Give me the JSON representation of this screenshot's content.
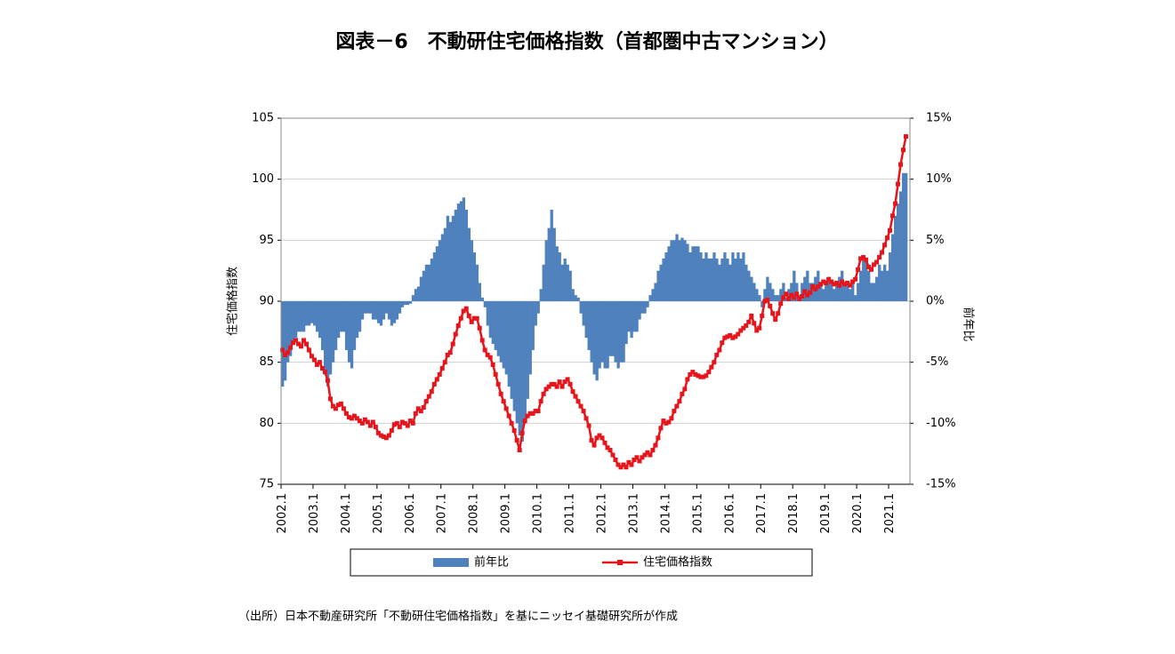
{
  "chart_data": {
    "type": "combo",
    "title": "図表－6　不動研住宅価格指数（首都圏中古マンション）",
    "note": "（出所）日本不動産研究所「不動研住宅価格指数」を基にニッセイ基礎研究所が作成",
    "ylabel": "住宅価格指数",
    "y2label": "前年比",
    "ylim": [
      75,
      105
    ],
    "yticks": [
      75,
      80,
      85,
      90,
      95,
      100,
      105
    ],
    "y2lim": [
      -15,
      15
    ],
    "y2ticks": [
      {
        "value": -15,
        "label": "-15%"
      },
      {
        "value": -10,
        "label": "-10%"
      },
      {
        "value": -5,
        "label": "-5%"
      },
      {
        "value": 0,
        "label": "0%"
      },
      {
        "value": 5,
        "label": "5%"
      },
      {
        "value": 10,
        "label": "10%"
      },
      {
        "value": 15,
        "label": "15%"
      }
    ],
    "grid": true,
    "legend": "bottom",
    "categories": [
      "2002.1",
      null,
      null,
      null,
      null,
      null,
      null,
      null,
      null,
      null,
      null,
      null,
      "2003.1",
      null,
      null,
      null,
      null,
      null,
      null,
      null,
      null,
      null,
      null,
      null,
      "2004.1",
      null,
      null,
      null,
      null,
      null,
      null,
      null,
      null,
      null,
      null,
      null,
      "2005.1",
      null,
      null,
      null,
      null,
      null,
      null,
      null,
      null,
      null,
      null,
      null,
      "2006.1",
      null,
      null,
      null,
      null,
      null,
      null,
      null,
      null,
      null,
      null,
      null,
      "2007.1",
      null,
      null,
      null,
      null,
      null,
      null,
      null,
      null,
      null,
      null,
      null,
      "2008.1",
      null,
      null,
      null,
      null,
      null,
      null,
      null,
      null,
      null,
      null,
      null,
      "2009.1",
      null,
      null,
      null,
      null,
      null,
      null,
      null,
      null,
      null,
      null,
      null,
      "2010.1",
      null,
      null,
      null,
      null,
      null,
      null,
      null,
      null,
      null,
      null,
      null,
      "2011.1",
      null,
      null,
      null,
      null,
      null,
      null,
      null,
      null,
      null,
      null,
      null,
      "2012.1",
      null,
      null,
      null,
      null,
      null,
      null,
      null,
      null,
      null,
      null,
      null,
      "2013.1",
      null,
      null,
      null,
      null,
      null,
      null,
      null,
      null,
      null,
      null,
      null,
      "2014.1",
      null,
      null,
      null,
      null,
      null,
      null,
      null,
      null,
      null,
      null,
      null,
      "2015.1",
      null,
      null,
      null,
      null,
      null,
      null,
      null,
      null,
      null,
      null,
      null,
      "2016.1",
      null,
      null,
      null,
      null,
      null,
      null,
      null,
      null,
      null,
      null,
      null,
      "2017.1",
      null,
      null,
      null,
      null,
      null,
      null,
      null,
      null,
      null,
      null,
      null,
      "2018.1",
      null,
      null,
      null,
      null,
      null,
      null,
      null,
      null,
      null,
      null,
      null,
      "2019.1",
      null,
      null,
      null,
      null,
      null,
      null,
      null,
      null,
      null,
      null,
      null,
      "2020.1",
      null,
      null,
      null,
      null,
      null,
      null,
      null,
      null,
      null,
      null,
      null,
      "2021.1",
      null,
      null,
      null,
      null,
      null,
      null
    ],
    "series": [
      {
        "name": "前年比",
        "type": "bar",
        "axis": "y2",
        "color": "#4f81bd",
        "values": [
          -7,
          -6.5,
          -5,
          -4.5,
          -3.5,
          -3,
          -2.5,
          -2.5,
          -2.5,
          -2,
          -2,
          -1.8,
          -2,
          -2.5,
          -3,
          -4,
          -6,
          -7,
          -6,
          -5,
          -4,
          -3,
          -2.5,
          -2.5,
          -4,
          -5,
          -5.5,
          -4,
          -3,
          -2.5,
          -1.5,
          -1,
          -1,
          -1,
          -1.5,
          -1.5,
          -1.8,
          -2,
          -1.5,
          -1,
          -1.5,
          -2,
          -1.8,
          -1.5,
          -1,
          -0.5,
          -0.3,
          -0.3,
          -0.2,
          0.5,
          1,
          1.2,
          2,
          2.5,
          3,
          3,
          3.5,
          4,
          4.5,
          5,
          5.5,
          6,
          7,
          6.5,
          7,
          7.5,
          8,
          8.2,
          8.5,
          7.5,
          6,
          5,
          4,
          3,
          1.5,
          0.3,
          -0.5,
          -2,
          -3,
          -3.5,
          -4,
          -4.5,
          -5,
          -5.5,
          -6,
          -7,
          -8,
          -9,
          -10,
          -11,
          -11.5,
          -10,
          -8,
          -6,
          -4,
          -2,
          -1,
          1,
          3,
          5,
          6,
          7.5,
          6,
          4.5,
          4,
          3,
          3.5,
          3,
          2.5,
          1,
          0.5,
          0.3,
          -1,
          -2,
          -3,
          -4,
          -5,
          -6,
          -6.5,
          -5.5,
          -5,
          -5.5,
          -5.5,
          -4.5,
          -4.5,
          -5,
          -5.5,
          -5,
          -5,
          -3.5,
          -2.5,
          -3,
          -2.5,
          -2.5,
          -1.5,
          -1,
          -1,
          -0.5,
          0.5,
          1,
          1.5,
          2.5,
          3,
          3.5,
          4,
          4.5,
          5,
          5,
          5.5,
          5,
          5.2,
          5,
          4.7,
          4,
          4.5,
          4.5,
          4.5,
          4,
          3.5,
          4,
          3.5,
          3.5,
          4,
          3.5,
          3,
          3.5,
          4,
          3.5,
          3,
          4,
          3.5,
          4,
          3.5,
          4,
          3,
          2.5,
          2,
          1.5,
          1,
          0.5,
          -0.5,
          1,
          2,
          1.5,
          1,
          0.5,
          0.5,
          1,
          1.5,
          0.3,
          1,
          1.5,
          2.5,
          1.5,
          0.5,
          1.5,
          2,
          2.5,
          1.5,
          1.5,
          2,
          2.5,
          1.5,
          1,
          1.5,
          2,
          1.5,
          1,
          1.5,
          2,
          2.5,
          1.5,
          1.5,
          1,
          1.5,
          0.5,
          1.5,
          2.5,
          3.5,
          3.5,
          2.5,
          1.5,
          1.5,
          2,
          3,
          2.5,
          3,
          2.5,
          4,
          5.5,
          7,
          8,
          9,
          10.5,
          10.5
        ]
      },
      {
        "name": "住宅価格指数",
        "type": "line",
        "color": "#e8141b",
        "values": [
          86.0,
          85.6,
          85.8,
          86.2,
          86.6,
          86.8,
          86.5,
          86.3,
          86.8,
          86.5,
          86.0,
          85.5,
          85.2,
          84.8,
          85.0,
          84.5,
          84.2,
          83.5,
          82.0,
          81.4,
          81.2,
          81.5,
          81.6,
          81.2,
          80.8,
          80.5,
          80.4,
          80.6,
          80.4,
          80.2,
          80.0,
          80.3,
          80.1,
          79.8,
          80.1,
          79.7,
          79.2,
          79.0,
          78.9,
          78.8,
          79.0,
          79.4,
          79.9,
          80.0,
          79.7,
          80.1,
          80.0,
          79.8,
          80.2,
          80.0,
          80.8,
          81.2,
          81.0,
          81.3,
          81.8,
          82.2,
          82.6,
          83.2,
          83.6,
          84.0,
          84.5,
          85.0,
          85.6,
          85.8,
          86.5,
          87.3,
          88.0,
          88.6,
          89.2,
          89.4,
          88.8,
          88.3,
          88.6,
          88.6,
          87.8,
          86.8,
          86.0,
          85.6,
          85.4,
          84.8,
          84.0,
          83.2,
          82.4,
          81.8,
          81.2,
          80.6,
          80.0,
          79.4,
          78.6,
          77.8,
          79.2,
          80.2,
          80.6,
          80.8,
          80.8,
          81.0,
          81.0,
          81.8,
          82.4,
          82.8,
          83.0,
          83.2,
          83.2,
          83.0,
          83.4,
          83.0,
          83.4,
          83.6,
          83.2,
          82.6,
          82.2,
          81.8,
          81.4,
          81.0,
          80.4,
          79.8,
          78.6,
          78.2,
          78.8,
          79.0,
          78.8,
          78.4,
          78.0,
          77.8,
          77.4,
          77.0,
          76.6,
          76.4,
          76.6,
          76.4,
          76.8,
          76.6,
          77.0,
          77.2,
          76.9,
          77.2,
          77.4,
          77.6,
          77.4,
          77.8,
          78.2,
          78.8,
          79.6,
          80.2,
          80.0,
          80.1,
          80.4,
          81.0,
          81.4,
          81.8,
          82.4,
          82.8,
          83.6,
          84.0,
          84.2,
          84.0,
          83.9,
          83.8,
          83.8,
          83.9,
          84.2,
          84.6,
          85.0,
          85.6,
          86.0,
          86.6,
          87.0,
          87.1,
          87.2,
          87.0,
          87.1,
          87.3,
          87.6,
          87.8,
          88.0,
          88.3,
          88.8,
          88.2,
          87.6,
          87.8,
          88.8,
          90.0,
          90.1,
          89.6,
          89.0,
          88.5,
          89.0,
          89.8,
          90.3,
          90.6,
          90.2,
          90.5,
          90.3,
          90.6,
          90.2,
          90.4,
          90.8,
          90.5,
          90.7,
          91.2,
          91.0,
          91.2,
          91.4,
          91.6,
          91.5,
          91.8,
          91.6,
          91.4,
          91.5,
          91.3,
          91.6,
          91.4,
          91.5,
          91.3,
          91.6,
          91.8,
          92.6,
          93.5,
          93.6,
          93.4,
          92.8,
          92.6,
          93.0,
          93.2,
          93.6,
          94.0,
          94.6,
          95.2,
          95.8,
          97.0,
          98.0,
          99.6,
          101.2,
          102.4,
          103.5
        ]
      }
    ]
  }
}
